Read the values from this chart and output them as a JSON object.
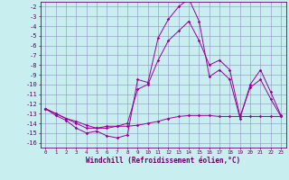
{
  "xlabel": "Windchill (Refroidissement éolien,°C)",
  "bg_color": "#c8eef0",
  "grid_color": "#9090c0",
  "line_color": "#990099",
  "x_hours": [
    0,
    1,
    2,
    3,
    4,
    5,
    6,
    7,
    8,
    9,
    10,
    11,
    12,
    13,
    14,
    15,
    16,
    17,
    18,
    19,
    20,
    21,
    22,
    23
  ],
  "series1": [
    -12.5,
    -13.2,
    -13.7,
    -14.5,
    -15.0,
    -14.8,
    -15.3,
    -15.5,
    -15.2,
    -9.5,
    -9.8,
    -5.2,
    -3.3,
    -2.0,
    -1.2,
    -3.5,
    -9.2,
    -8.5,
    -9.5,
    -13.5,
    -10.0,
    -8.5,
    -10.8,
    -13.2
  ],
  "series2": [
    -12.5,
    -13.0,
    -13.5,
    -14.0,
    -14.5,
    -14.5,
    -14.3,
    -14.3,
    -14.3,
    -14.2,
    -14.0,
    -13.8,
    -13.5,
    -13.3,
    -13.2,
    -13.2,
    -13.2,
    -13.3,
    -13.3,
    -13.3,
    -13.3,
    -13.3,
    -13.3,
    -13.3
  ],
  "series3": [
    -12.5,
    -13.0,
    -13.5,
    -13.8,
    -14.2,
    -14.5,
    -14.5,
    -14.3,
    -14.0,
    -10.5,
    -10.0,
    -7.5,
    -5.5,
    -4.5,
    -3.5,
    -5.5,
    -8.0,
    -7.5,
    -8.5,
    -13.3,
    -10.3,
    -9.5,
    -11.5,
    -13.3
  ],
  "ylim": [
    -16.5,
    -1.5
  ],
  "yticks": [
    -16,
    -15,
    -14,
    -13,
    -12,
    -11,
    -10,
    -9,
    -8,
    -7,
    -6,
    -5,
    -4,
    -3,
    -2
  ],
  "xlim": [
    -0.5,
    23.5
  ],
  "font_color": "#660066",
  "font_size_ytick": 5.0,
  "font_size_xtick": 4.2,
  "font_size_xlabel": 5.5,
  "marker_size": 1.8,
  "line_width": 0.7
}
